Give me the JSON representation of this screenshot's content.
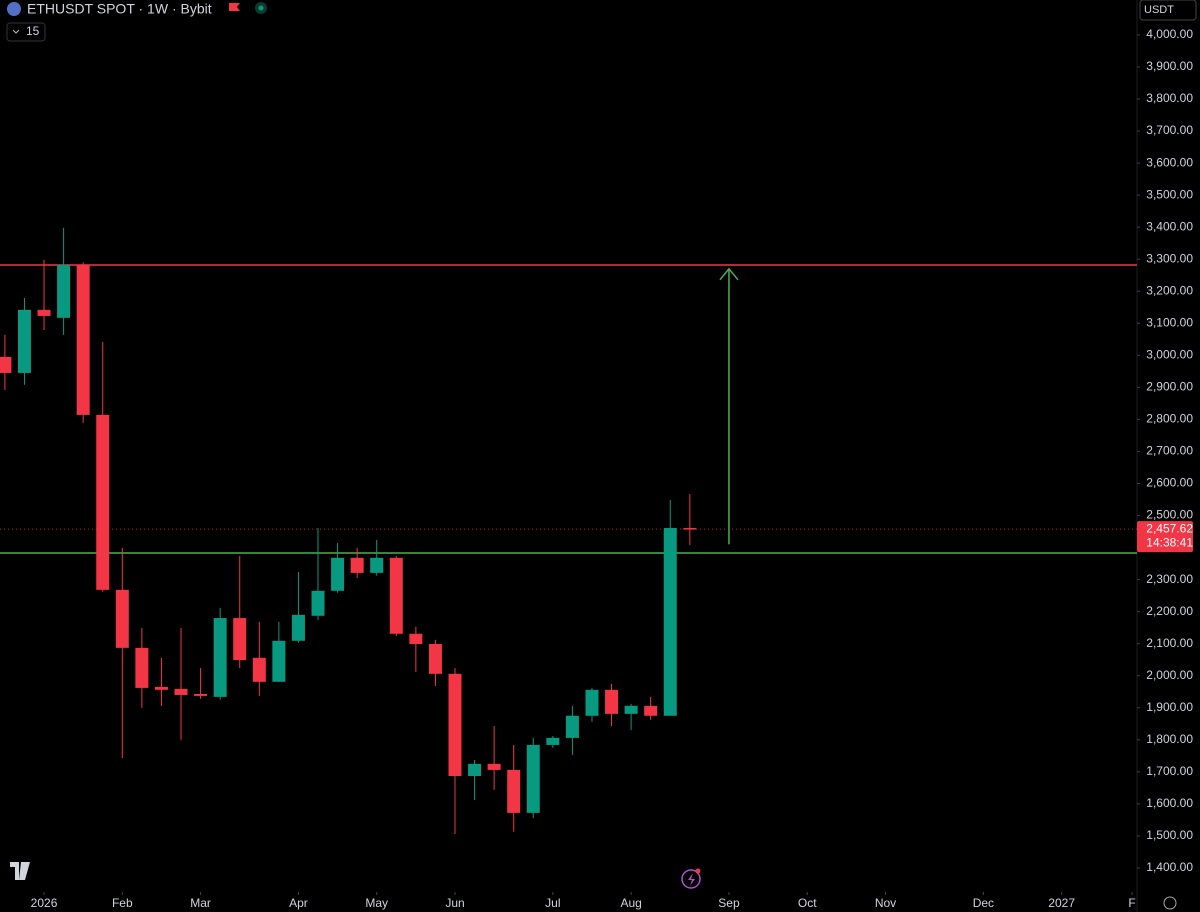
{
  "chart_data": {
    "type": "candlestick",
    "title": "ETHUSDT SPOT · 1W · Bybit",
    "indicator_count": "15",
    "currency": "USDT",
    "x": [
      -2,
      -1,
      0,
      1,
      2,
      3,
      4,
      5,
      6,
      7,
      8,
      9,
      10,
      11,
      12,
      13,
      14,
      15,
      16,
      17,
      18,
      19,
      20,
      21,
      22,
      23,
      24,
      25,
      26,
      27,
      28,
      29,
      30,
      31,
      32,
      33
    ],
    "open": [
      2995,
      2945,
      3142,
      3117,
      3282,
      2814,
      2268,
      2087,
      1965,
      1959,
      1943,
      1934,
      2180,
      2056,
      1981,
      2109,
      2187,
      2265,
      2368,
      2321,
      2368,
      2131,
      2099,
      2006,
      1687,
      1725,
      1706,
      1572,
      1784,
      1806,
      1875,
      1956,
      1881,
      1906,
      1875,
      2461
    ],
    "high": [
      3064,
      3179,
      3298,
      3398,
      3290,
      3042,
      2399,
      2149,
      2056,
      2149,
      2024,
      2212,
      2374,
      2168,
      2168,
      2324,
      2461,
      2414,
      2399,
      2424,
      2374,
      2153,
      2112,
      2024,
      1737,
      1843,
      1784,
      1806,
      1812,
      1906,
      1962,
      1975,
      1912,
      1934,
      2549,
      2567
    ],
    "low": [
      2892,
      2908,
      3079,
      3064,
      2789,
      2262,
      1743,
      1900,
      1906,
      1800,
      1928,
      1925,
      2024,
      1937,
      1981,
      2103,
      2174,
      2259,
      2305,
      2312,
      2124,
      2012,
      1968,
      1506,
      1612,
      1644,
      1513,
      1556,
      1775,
      1753,
      1856,
      1843,
      1831,
      1862,
      1875,
      2408
    ],
    "close": [
      2945,
      3142,
      3123,
      3282,
      2814,
      2268,
      2087,
      1962,
      1956,
      1940,
      1937,
      2180,
      2049,
      1981,
      2109,
      2190,
      2265,
      2368,
      2321,
      2368,
      2131,
      2099,
      2006,
      1687,
      1725,
      1706,
      1572,
      1784,
      1806,
      1875,
      1956,
      1881,
      1906,
      1875,
      2461,
      2457.62
    ],
    "up_color": "#089981",
    "down_color": "#f23645",
    "levels": [
      {
        "value": 3282,
        "color": "#f23645"
      },
      {
        "value": 2383,
        "color": "#4caf50"
      }
    ],
    "arrow": {
      "x": 35,
      "from": 2410,
      "to": 3270,
      "color": "#4caf50"
    },
    "last_price": 2457.62,
    "last_price_label": "2,457.62",
    "countdown": "14:38:41",
    "xlim": [
      -2.25,
      55.85
    ],
    "ylim": [
      1325,
      4109
    ],
    "xticks": [
      {
        "value": 0,
        "label": "2026"
      },
      {
        "value": 4,
        "label": "Feb"
      },
      {
        "value": 8,
        "label": "Mar"
      },
      {
        "value": 13,
        "label": "Apr"
      },
      {
        "value": 17,
        "label": "May"
      },
      {
        "value": 21,
        "label": "Jun"
      },
      {
        "value": 26,
        "label": "Jul"
      },
      {
        "value": 30,
        "label": "Aug"
      },
      {
        "value": 35,
        "label": "Sep"
      },
      {
        "value": 39,
        "label": "Oct"
      },
      {
        "value": 43,
        "label": "Nov"
      },
      {
        "value": 48,
        "label": "Dec"
      },
      {
        "value": 52,
        "label": "2027"
      },
      {
        "value": 55.6,
        "label": "F"
      }
    ],
    "yticks": [
      {
        "value": 1400,
        "label": "1,400.00"
      },
      {
        "value": 1500,
        "label": "1,500.00"
      },
      {
        "value": 1600,
        "label": "1,600.00"
      },
      {
        "value": 1700,
        "label": "1,700.00"
      },
      {
        "value": 1800,
        "label": "1,800.00"
      },
      {
        "value": 1900,
        "label": "1,900.00"
      },
      {
        "value": 2000,
        "label": "2,000.00"
      },
      {
        "value": 2100,
        "label": "2,100.00"
      },
      {
        "value": 2200,
        "label": "2,200.00"
      },
      {
        "value": 2300,
        "label": "2,300.00"
      },
      {
        "value": 2400,
        "label": "2,400.00"
      },
      {
        "value": 2500,
        "label": "2,500.00"
      },
      {
        "value": 2600,
        "label": "2,600.00"
      },
      {
        "value": 2700,
        "label": "2,700.00"
      },
      {
        "value": 2800,
        "label": "2,800.00"
      },
      {
        "value": 2900,
        "label": "2,900.00"
      },
      {
        "value": 3000,
        "label": "3,000.00"
      },
      {
        "value": 3100,
        "label": "3,100.00"
      },
      {
        "value": 3200,
        "label": "3,200.00"
      },
      {
        "value": 3300,
        "label": "3,300.00"
      },
      {
        "value": 3400,
        "label": "3,400.00"
      },
      {
        "value": 3500,
        "label": "3,500.00"
      },
      {
        "value": 3600,
        "label": "3,600.00"
      },
      {
        "value": 3700,
        "label": "3,700.00"
      },
      {
        "value": 3800,
        "label": "3,800.00"
      },
      {
        "value": 3900,
        "label": "3,900.00"
      },
      {
        "value": 4000,
        "label": "4,000.00"
      }
    ],
    "grid": false
  }
}
